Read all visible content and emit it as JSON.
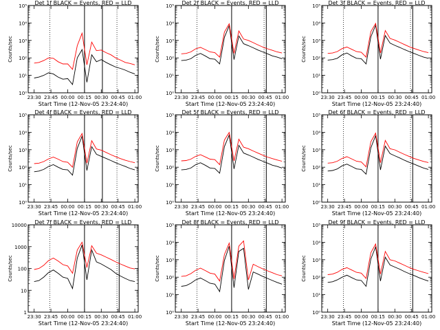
{
  "figure": {
    "start_time_label": "Start Time (12-Nov-05 23:24:40)",
    "ylabel": "Counts/sec",
    "x_tick_labels": [
      "23:30",
      "23:45",
      "00:00",
      "00:15",
      "00:30",
      "00:45",
      "01:00"
    ],
    "colors": {
      "events": "#000000",
      "lld": "#ff0000",
      "axes": "#000000"
    }
  },
  "chart_data": [
    {
      "type": "line",
      "title": "Det 1f BLACK = Events, RED = LLD",
      "xlabel": "Start Time (12-Nov-05 23:24:40)",
      "ylabel": "Counts/sec",
      "xlim": [
        "23:24:40",
        "01:03:00"
      ],
      "yscale": "log",
      "ylim": [
        1,
        100000
      ],
      "y_tick_labels": [
        "10⁰",
        "10¹",
        "10²",
        "10³",
        "10⁴",
        "10⁵"
      ],
      "markers": {
        "dotted": [
          "23:44",
          "00:44"
        ],
        "solid": [
          "00:15",
          "00:31"
        ]
      },
      "series": [
        {
          "name": "Events",
          "color": "#000000",
          "values": [
            7,
            8,
            10,
            14,
            12,
            8,
            6,
            6.5,
            3,
            100,
            300,
            4,
            150,
            60,
            80,
            55,
            40,
            30,
            25,
            20,
            15,
            12
          ]
        },
        {
          "name": "LLD",
          "color": "#ff0000",
          "values": [
            50,
            55,
            70,
            100,
            95,
            60,
            45,
            45,
            22,
            500,
            2600,
            40,
            800,
            260,
            280,
            200,
            150,
            100,
            75,
            55,
            48,
            40
          ]
        }
      ]
    },
    {
      "type": "line",
      "title": "Det 2f BLACK = Events, RED = LLD",
      "xlabel": "Start Time (12-Nov-05 23:24:40)",
      "ylabel": "Counts/sec",
      "xlim": [
        "23:24:40",
        "01:03:00"
      ],
      "yscale": "log",
      "ylim": [
        1,
        100000
      ],
      "y_tick_labels": [
        "10⁰",
        "10¹",
        "10²",
        "10³",
        "10⁴",
        "10⁵"
      ],
      "markers": {
        "dotted": [
          "23:44",
          "00:44"
        ],
        "solid": [
          "00:15",
          "00:46"
        ]
      },
      "series": [
        {
          "name": "Events",
          "color": "#000000",
          "values": [
            70,
            75,
            90,
            140,
            180,
            130,
            90,
            85,
            45,
            1500,
            7000,
            80,
            1800,
            650,
            500,
            380,
            280,
            220,
            170,
            130,
            110,
            90
          ]
        },
        {
          "name": "LLD",
          "color": "#ff0000",
          "values": [
            170,
            180,
            220,
            330,
            400,
            300,
            220,
            200,
            110,
            3000,
            9000,
            180,
            3500,
            1200,
            1000,
            750,
            550,
            420,
            330,
            270,
            220,
            190
          ]
        }
      ]
    },
    {
      "type": "line",
      "title": "Det 3f BLACK = Events, RED = LLD",
      "xlabel": "Start Time (12-Nov-05 23:24:40)",
      "ylabel": "Counts/sec",
      "xlim": [
        "23:24:40",
        "01:03:00"
      ],
      "yscale": "log",
      "ylim": [
        1,
        100000
      ],
      "y_tick_labels": [
        "10⁰",
        "10¹",
        "10²",
        "10³",
        "10⁴",
        "10⁵"
      ],
      "markers": {
        "dotted": [
          "23:44",
          "00:44"
        ],
        "solid": [
          "00:15",
          "00:46"
        ]
      },
      "series": [
        {
          "name": "Events",
          "color": "#000000",
          "values": [
            75,
            80,
            95,
            150,
            190,
            130,
            95,
            90,
            45,
            1600,
            7500,
            85,
            1900,
            700,
            520,
            400,
            300,
            230,
            180,
            140,
            110,
            95
          ]
        },
        {
          "name": "LLD",
          "color": "#ff0000",
          "values": [
            180,
            190,
            230,
            340,
            420,
            310,
            230,
            210,
            110,
            3200,
            9500,
            190,
            3700,
            1300,
            1050,
            780,
            580,
            440,
            350,
            280,
            230,
            200
          ]
        }
      ]
    },
    {
      "type": "line",
      "title": "Det 4f BLACK = Events, RED = LLD",
      "xlabel": "Start Time (12-Nov-05 23:24:40)",
      "ylabel": "Counts/sec",
      "xlim": [
        "23:24:40",
        "01:03:00"
      ],
      "yscale": "log",
      "ylim": [
        1,
        100000
      ],
      "y_tick_labels": [
        "10⁰",
        "10¹",
        "10²",
        "10³",
        "10⁴",
        "10⁵"
      ],
      "markers": {
        "dotted": [
          "23:44",
          "00:44"
        ],
        "solid": [
          "00:15",
          "00:31"
        ]
      },
      "series": [
        {
          "name": "Events",
          "color": "#000000",
          "values": [
            55,
            60,
            75,
            110,
            140,
            100,
            75,
            70,
            35,
            1200,
            6000,
            65,
            1500,
            550,
            420,
            320,
            240,
            180,
            140,
            110,
            85,
            70
          ]
        },
        {
          "name": "LLD",
          "color": "#ff0000",
          "values": [
            160,
            170,
            210,
            300,
            380,
            290,
            210,
            190,
            100,
            2800,
            8500,
            170,
            3300,
            1100,
            950,
            700,
            520,
            400,
            310,
            250,
            210,
            180
          ]
        }
      ]
    },
    {
      "type": "line",
      "title": "Det 5f BLACK = Events, RED = LLD",
      "xlabel": "Start Time (12-Nov-05 23:24:40)",
      "ylabel": "Counts/sec",
      "xlim": [
        "23:24:40",
        "01:03:00"
      ],
      "yscale": "log",
      "ylim": [
        1,
        100000
      ],
      "y_tick_labels": [
        "10⁰",
        "10¹",
        "10²",
        "10³",
        "10⁴",
        "10⁵"
      ],
      "markers": {
        "dotted": [
          "23:44",
          "00:44"
        ],
        "solid": [
          "00:15",
          "00:46"
        ]
      },
      "series": [
        {
          "name": "Events",
          "color": "#000000",
          "values": [
            70,
            75,
            90,
            140,
            180,
            130,
            90,
            85,
            45,
            1500,
            7000,
            80,
            1800,
            650,
            500,
            380,
            280,
            220,
            170,
            130,
            110,
            90
          ]
        },
        {
          "name": "LLD",
          "color": "#ff0000",
          "values": [
            230,
            240,
            290,
            420,
            520,
            390,
            290,
            270,
            140,
            3600,
            9800,
            230,
            4000,
            1400,
            1150,
            850,
            640,
            490,
            380,
            310,
            260,
            220
          ]
        }
      ]
    },
    {
      "type": "line",
      "title": "Det 6f BLACK = Events, RED = LLD",
      "xlabel": "Start Time (12-Nov-05 23:24:40)",
      "ylabel": "Counts/sec",
      "xlim": [
        "23:24:40",
        "01:03:00"
      ],
      "yscale": "log",
      "ylim": [
        1,
        100000
      ],
      "y_tick_labels": [
        "10⁰",
        "10¹",
        "10²",
        "10³",
        "10⁴",
        "10⁵"
      ],
      "markers": {
        "dotted": [
          "23:44",
          "00:44"
        ],
        "solid": [
          "00:15",
          "00:46"
        ]
      },
      "series": [
        {
          "name": "Events",
          "color": "#000000",
          "values": [
            60,
            65,
            80,
            120,
            150,
            110,
            80,
            75,
            40,
            1300,
            6500,
            70,
            1600,
            600,
            450,
            340,
            250,
            190,
            150,
            115,
            90,
            75
          ]
        },
        {
          "name": "LLD",
          "color": "#ff0000",
          "values": [
            170,
            180,
            220,
            320,
            400,
            300,
            220,
            200,
            105,
            2900,
            9000,
            180,
            3400,
            1150,
            980,
            720,
            540,
            410,
            320,
            260,
            215,
            185
          ]
        }
      ]
    },
    {
      "type": "line",
      "title": "Det 7f BLACK = Events, RED = LLD",
      "xlabel": "Start Time (12-Nov-05 23:24:40)",
      "ylabel": "Counts/sec",
      "xlim": [
        "23:24:40",
        "01:03:00"
      ],
      "yscale": "log",
      "ylim": [
        1,
        10000
      ],
      "y_tick_labels": [
        "1",
        "10",
        "100",
        "1000",
        "10000"
      ],
      "markers": {
        "dotted": [
          "23:44",
          "00:44"
        ],
        "solid": [
          "00:15",
          "00:46"
        ]
      },
      "series": [
        {
          "name": "Events",
          "color": "#000000",
          "values": [
            25,
            28,
            40,
            65,
            85,
            60,
            40,
            35,
            12,
            300,
            1200,
            30,
            700,
            200,
            160,
            120,
            90,
            60,
            45,
            35,
            28,
            25
          ]
        },
        {
          "name": "LLD",
          "color": "#ff0000",
          "values": [
            90,
            100,
            140,
            230,
            300,
            220,
            150,
            130,
            60,
            700,
            1600,
            110,
            1100,
            500,
            420,
            330,
            260,
            200,
            160,
            130,
            105,
            95
          ]
        }
      ]
    },
    {
      "type": "line",
      "title": "Det 8f BLACK = Events, RED = LLD",
      "xlabel": "Start Time (12-Nov-05 23:24:40)",
      "ylabel": "Counts/sec",
      "xlim": [
        "23:24:40",
        "01:03:00"
      ],
      "yscale": "log",
      "ylim": [
        1,
        100000
      ],
      "y_tick_labels": [
        "10⁰",
        "10¹",
        "10²",
        "10³",
        "10⁴",
        "10⁵"
      ],
      "markers": {
        "dotted": [
          "23:44",
          "00:44"
        ],
        "solid": [
          "00:15",
          "00:46"
        ]
      },
      "series": [
        {
          "name": "Events",
          "color": "#000000",
          "values": [
            30,
            33,
            45,
            70,
            90,
            65,
            45,
            40,
            15,
            900,
            6000,
            25,
            3000,
            4500,
            20,
            200,
            150,
            110,
            85,
            65,
            50,
            40
          ]
        },
        {
          "name": "LLD",
          "color": "#ff0000",
          "values": [
            110,
            120,
            160,
            250,
            330,
            240,
            170,
            150,
            60,
            2000,
            9000,
            80,
            6000,
            12000,
            70,
            550,
            400,
            300,
            230,
            180,
            140,
            120
          ]
        }
      ]
    },
    {
      "type": "line",
      "title": "Det 9f BLACK = Events, RED = LLD",
      "xlabel": "Start Time (12-Nov-05 23:24:40)",
      "ylabel": "Counts/sec",
      "xlim": [
        "23:24:40",
        "01:03:00"
      ],
      "yscale": "log",
      "ylim": [
        1,
        100000
      ],
      "y_tick_labels": [
        "10⁰",
        "10¹",
        "10²",
        "10³",
        "10⁴",
        "10⁵"
      ],
      "markers": {
        "dotted": [
          "23:44",
          "00:44"
        ],
        "solid": [
          "00:15",
          "00:46"
        ]
      },
      "series": [
        {
          "name": "Events",
          "color": "#000000",
          "values": [
            50,
            55,
            70,
            100,
            130,
            95,
            70,
            65,
            30,
            1100,
            5500,
            60,
            1400,
            500,
            380,
            290,
            210,
            160,
            125,
            95,
            75,
            60
          ]
        },
        {
          "name": "LLD",
          "color": "#ff0000",
          "values": [
            140,
            150,
            190,
            280,
            350,
            260,
            190,
            170,
            85,
            2500,
            8000,
            150,
            3000,
            1000,
            860,
            640,
            480,
            360,
            280,
            230,
            190,
            160
          ]
        }
      ]
    }
  ]
}
